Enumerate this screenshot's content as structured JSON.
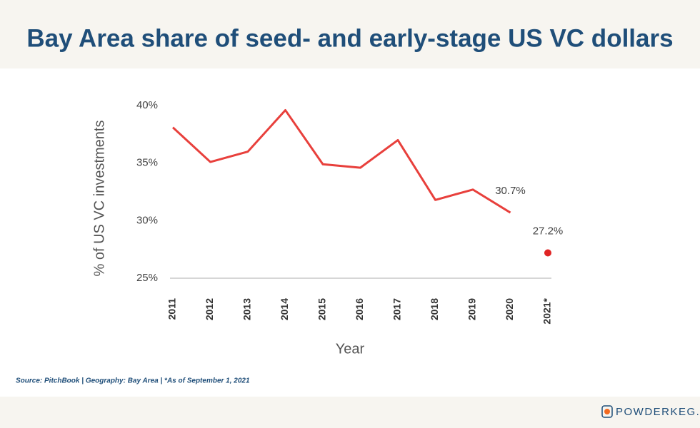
{
  "chart_data": {
    "type": "line",
    "title": "Bay Area share of seed- and early-stage US VC dollars",
    "ylabel": "% of US VC investments",
    "xlabel": "Year",
    "categories": [
      "2011",
      "2012",
      "2013",
      "2014",
      "2015",
      "2016",
      "2017",
      "2018",
      "2019",
      "2020",
      "2021*"
    ],
    "series": [
      {
        "color": "#e8403c",
        "style": "line",
        "values": [
          38.1,
          35.1,
          36.0,
          39.6,
          34.9,
          34.6,
          37.0,
          31.8,
          32.7,
          30.7,
          null
        ],
        "value_labels": [
          null,
          null,
          null,
          null,
          null,
          null,
          null,
          null,
          null,
          "30.7%",
          null
        ]
      },
      {
        "color": "#e02424",
        "style": "point",
        "values": [
          null,
          null,
          null,
          null,
          null,
          null,
          null,
          null,
          null,
          null,
          27.2
        ],
        "value_labels": [
          null,
          null,
          null,
          null,
          null,
          null,
          null,
          null,
          null,
          null,
          "27.2%"
        ]
      }
    ],
    "ylim": [
      25,
      40
    ],
    "yticks": [
      {
        "value": 25,
        "label": "25%"
      },
      {
        "value": 30,
        "label": "30%"
      },
      {
        "value": 35,
        "label": "35%"
      },
      {
        "value": 40,
        "label": "40%"
      }
    ],
    "grid": false,
    "source": "Source:  PitchBook | Geography: Bay Area | *As of September 1, 2021"
  },
  "brand": "POWDERKEG."
}
